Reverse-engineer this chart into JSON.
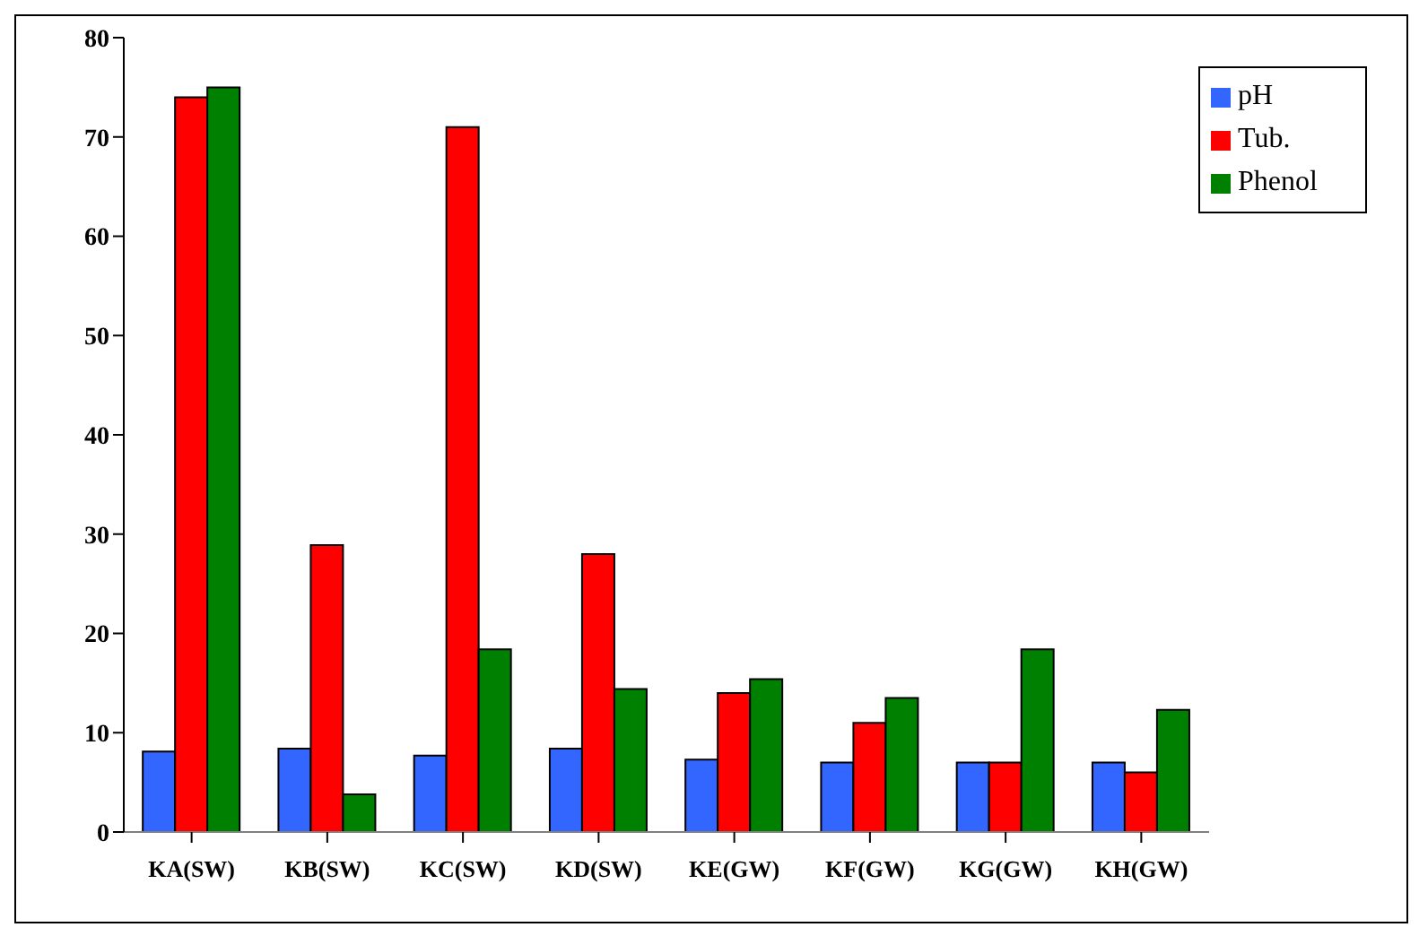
{
  "chart_data": {
    "type": "bar",
    "categories": [
      "KA(SW)",
      "KB(SW)",
      "KC(SW)",
      "KD(SW)",
      "KE(GW)",
      "KF(GW)",
      "KG(GW)",
      "KH(GW)"
    ],
    "series": [
      {
        "name": "pH",
        "color": "#3366ff",
        "values": [
          8.1,
          8.4,
          7.7,
          8.4,
          7.3,
          7.0,
          7.0,
          7.0
        ]
      },
      {
        "name": "Tub.",
        "color": "#ff0000",
        "values": [
          74,
          28.9,
          71,
          28,
          14,
          11,
          7,
          6
        ]
      },
      {
        "name": "Phenol",
        "color": "#008000",
        "values": [
          75,
          3.8,
          18.4,
          14.4,
          15.4,
          13.5,
          18.4,
          12.3
        ]
      }
    ],
    "ylim": [
      0,
      80
    ],
    "yticks": [
      0,
      10,
      20,
      30,
      40,
      50,
      60,
      70,
      80
    ],
    "grid": false,
    "legend": "top right"
  }
}
